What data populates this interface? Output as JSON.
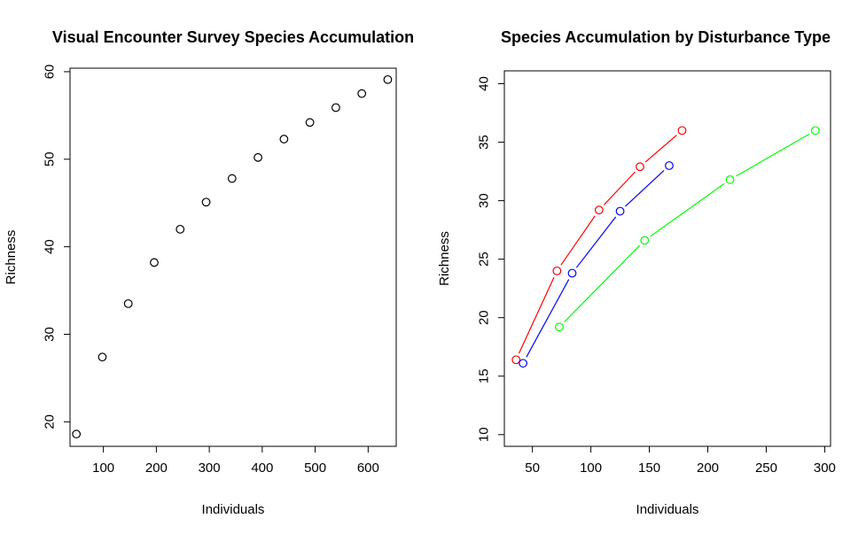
{
  "chart_data": [
    {
      "type": "scatter",
      "title": "Visual Encounter Survey Species Accumulation",
      "xlabel": "Individuals",
      "ylabel": "Richness",
      "xlim": [
        37,
        653
      ],
      "ylim": [
        17.2,
        60.4
      ],
      "xticks": [
        100,
        200,
        300,
        400,
        500,
        600
      ],
      "yticks": [
        20,
        30,
        40,
        50,
        60
      ],
      "grid": false,
      "series": [
        {
          "color": "#000000",
          "marker": "open-circle",
          "x": [
            49,
            98,
            147,
            196,
            245,
            294,
            343,
            392,
            441,
            490,
            539,
            588,
            637
          ],
          "y": [
            18.6,
            27.4,
            33.5,
            38.2,
            42.0,
            45.1,
            47.8,
            50.2,
            52.3,
            54.2,
            55.9,
            57.5,
            59.1
          ]
        }
      ]
    },
    {
      "type": "line",
      "title": "Species Accumulation by Disturbance Type",
      "xlabel": "Individuals",
      "ylabel": "Richness",
      "xlim": [
        26,
        305
      ],
      "ylim": [
        9.0,
        41.1
      ],
      "xticks": [
        50,
        100,
        150,
        200,
        250,
        300
      ],
      "yticks": [
        10,
        15,
        20,
        25,
        30,
        35,
        40
      ],
      "grid": false,
      "series": [
        {
          "color": "#ff0000",
          "marker": "open-circle",
          "x": [
            36,
            71,
            107,
            142,
            178
          ],
          "y": [
            16.4,
            24.0,
            29.2,
            32.9,
            36.0
          ]
        },
        {
          "color": "#0000ff",
          "marker": "open-circle",
          "x": [
            42,
            84,
            125,
            167
          ],
          "y": [
            16.1,
            23.8,
            29.1,
            33.0
          ]
        },
        {
          "color": "#00ff00",
          "marker": "open-circle",
          "x": [
            73,
            146,
            219,
            292
          ],
          "y": [
            19.2,
            26.6,
            31.8,
            36.0
          ]
        }
      ]
    }
  ]
}
